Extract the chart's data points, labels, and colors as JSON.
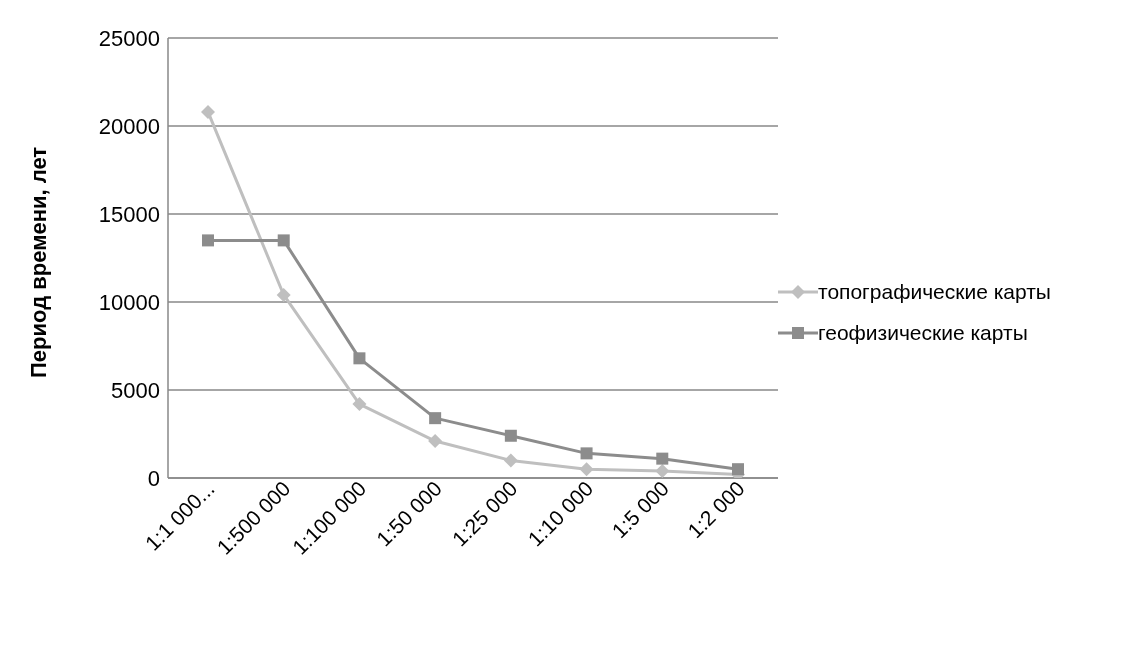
{
  "chart_data": {
    "type": "line",
    "ylabel": "Период времени, лет",
    "categories": [
      "1:1 000...",
      "1:500 000",
      "1:100 000",
      "1:50 000",
      "1:25 000",
      "1:10 000",
      "1:5 000",
      "1:2 000"
    ],
    "series": [
      {
        "name": "топографические карты",
        "color": "#bfbfbf",
        "marker": "diamond",
        "values": [
          20800,
          10400,
          4200,
          2100,
          1000,
          500,
          400,
          200
        ]
      },
      {
        "name": "геофизические карты",
        "color": "#8c8c8c",
        "marker": "square",
        "values": [
          13500,
          13500,
          6800,
          3400,
          2400,
          1400,
          1100,
          500
        ]
      }
    ],
    "ylim": [
      0,
      25000
    ],
    "yticks": [
      0,
      5000,
      10000,
      15000,
      20000,
      25000
    ],
    "grid": "y",
    "legend": "right"
  }
}
